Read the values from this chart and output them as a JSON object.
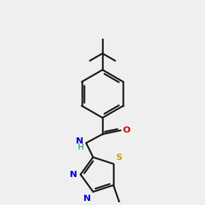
{
  "bg_color": "#efefef",
  "bond_color": "#1a1a1a",
  "bond_width": 1.8,
  "atom_colors": {
    "N": "#0000cc",
    "O": "#dd0000",
    "S": "#bbaa00",
    "H": "#008888",
    "C": "#1a1a1a"
  },
  "font_size": 9.5,
  "fig_bg": "#efefef"
}
